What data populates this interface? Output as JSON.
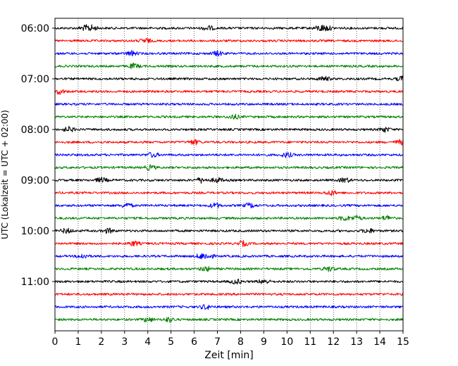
{
  "chart_data": {
    "type": "line",
    "title": "",
    "xlabel": "Zeit  [min]",
    "ylabel": "UTC (Lokalzeit = UTC + 02:00)",
    "xlim": [
      0,
      15
    ],
    "x_ticks": [
      "0",
      "1",
      "2",
      "3",
      "4",
      "5",
      "6",
      "7",
      "8",
      "9",
      "10",
      "11",
      "12",
      "13",
      "14",
      "15"
    ],
    "y_ticks": [
      {
        "label": "06:00",
        "trace": 0
      },
      {
        "label": "07:00",
        "trace": 4
      },
      {
        "label": "08:00",
        "trace": 8
      },
      {
        "label": "09:00",
        "trace": 12
      },
      {
        "label": "10:00",
        "trace": 16
      },
      {
        "label": "11:00",
        "trace": 20
      }
    ],
    "grid": "vertical dotted",
    "trace_interval_minutes": 15,
    "color_cycle": [
      "#000000",
      "#ff0000",
      "#0000ff",
      "#008000"
    ],
    "traces": [
      {
        "start": "06:00",
        "events": [
          1.3,
          1.6,
          6.6,
          11.4,
          11.7
        ]
      },
      {
        "start": "06:15",
        "events": [
          3.9
        ]
      },
      {
        "start": "06:30",
        "events": [
          3.3,
          7.0
        ]
      },
      {
        "start": "06:45",
        "events": [
          3.4
        ]
      },
      {
        "start": "07:00",
        "events": [
          11.6,
          14.95
        ]
      },
      {
        "start": "07:15",
        "events": [
          0.2
        ]
      },
      {
        "start": "07:30",
        "events": []
      },
      {
        "start": "07:45",
        "events": [
          7.7
        ]
      },
      {
        "start": "08:00",
        "events": [
          0.6,
          14.2
        ]
      },
      {
        "start": "08:15",
        "events": [
          6.0,
          14.9
        ]
      },
      {
        "start": "08:30",
        "events": [
          4.2,
          10.0
        ]
      },
      {
        "start": "08:45",
        "events": [
          4.1
        ]
      },
      {
        "start": "09:00",
        "events": [
          2.0,
          6.3,
          7.0,
          12.5
        ]
      },
      {
        "start": "09:15",
        "events": [
          11.9
        ]
      },
      {
        "start": "09:30",
        "events": [
          3.1,
          6.9,
          8.4
        ]
      },
      {
        "start": "09:45",
        "events": [
          12.5,
          13.0,
          14.3
        ]
      },
      {
        "start": "10:00",
        "events": [
          0.5,
          2.3,
          13.5
        ]
      },
      {
        "start": "10:15",
        "events": [
          3.4,
          8.1
        ]
      },
      {
        "start": "10:30",
        "events": [
          1.2,
          6.3,
          6.6
        ]
      },
      {
        "start": "10:45",
        "events": [
          6.5,
          11.8
        ]
      },
      {
        "start": "11:00",
        "events": [
          7.8,
          9.0
        ]
      },
      {
        "start": "11:15",
        "events": []
      },
      {
        "start": "11:30",
        "events": [
          6.5
        ]
      },
      {
        "start": "11:45",
        "events": [
          4.0,
          4.9
        ]
      }
    ]
  }
}
